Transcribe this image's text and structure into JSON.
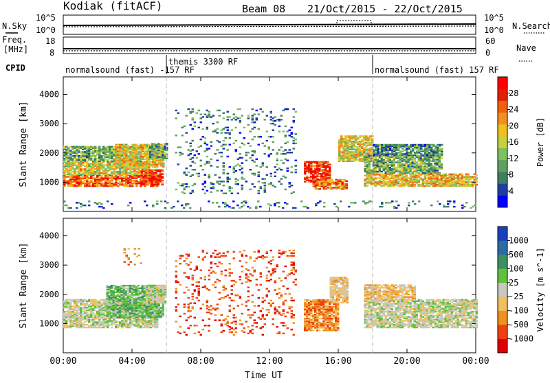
{
  "header": {
    "station": "Kodiak (fitACF)",
    "beam": "Beam 08",
    "dates": "21/Oct/2015 - 22/Oct/2015"
  },
  "side_labels": {
    "nsky": "N.Sky",
    "freq": "Freq.",
    "freq_unit": "[MHz]",
    "cpid": "CPID",
    "nsearch": "N.Search",
    "nave": "Nave"
  },
  "top_ticks": {
    "noise_left_hi": "10^5",
    "noise_left_lo": "10^0",
    "noise_right_hi": "10^5",
    "noise_right_lo": "10^0",
    "freq_hi": "18",
    "freq_lo": "8",
    "nave_hi": "60",
    "nave_lo": "0"
  },
  "cpid_segments": [
    {
      "label": "normalsound (fast) -157 RF",
      "start_hour": 0,
      "end_hour": 6
    },
    {
      "label": "themis 3300 RF",
      "start_hour": 6,
      "end_hour": 18
    },
    {
      "label": "normalsound (fast) 157 RF",
      "start_hour": 18,
      "end_hour": 24
    }
  ],
  "chart_data": [
    {
      "type": "heatmap",
      "panel": "power",
      "ylabel": "Slant Range [km]",
      "xlabel": "Time UT",
      "x_ticks": [
        "00:00",
        "04:00",
        "08:00",
        "12:00",
        "16:00",
        "20:00",
        "00:00"
      ],
      "x_tick_hours": [
        0,
        4,
        8,
        12,
        16,
        20,
        24
      ],
      "xlim_hours": [
        0,
        24
      ],
      "ylim": [
        0,
        4600
      ],
      "y_ticks": [
        1000,
        2000,
        3000,
        4000
      ],
      "colorbar": {
        "label": "Power [dB]",
        "ticks": [
          "4",
          "8",
          "12",
          "16",
          "20",
          "24",
          "28"
        ],
        "colors": [
          "#0000ff",
          "#1f3fa0",
          "#3d8060",
          "#5fa060",
          "#7cc060",
          "#c8d040",
          "#f0c020",
          "#f09020",
          "#f06010",
          "#e02000",
          "#ff0000"
        ]
      },
      "blobs": [
        {
          "t0": 0.0,
          "t1": 5.5,
          "r0": 850,
          "r1": 1250,
          "level": 0.8
        },
        {
          "t0": 0.0,
          "t1": 5.0,
          "r0": 1250,
          "r1": 1700,
          "level": 0.55
        },
        {
          "t0": 0.0,
          "t1": 4.5,
          "r0": 1700,
          "r1": 2200,
          "level": 0.35
        },
        {
          "t0": 3.0,
          "t1": 5.8,
          "r0": 1500,
          "r1": 2300,
          "level": 0.55
        },
        {
          "t0": 4.5,
          "t1": 5.8,
          "r0": 900,
          "r1": 1400,
          "level": 0.9
        },
        {
          "t0": 5.0,
          "t1": 6.0,
          "r0": 1800,
          "r1": 2300,
          "level": 0.3
        },
        {
          "t0": 14.0,
          "t1": 15.5,
          "r0": 1000,
          "r1": 1700,
          "level": 0.9
        },
        {
          "t0": 14.5,
          "t1": 16.5,
          "r0": 750,
          "r1": 1100,
          "level": 0.75
        },
        {
          "t0": 16.0,
          "t1": 18.0,
          "r0": 1700,
          "r1": 2600,
          "level": 0.55
        },
        {
          "t0": 17.5,
          "t1": 24.0,
          "r0": 850,
          "r1": 1300,
          "level": 0.6
        },
        {
          "t0": 17.5,
          "t1": 22.0,
          "r0": 1300,
          "r1": 1900,
          "level": 0.35
        },
        {
          "t0": 18.0,
          "t1": 22.0,
          "r0": 1900,
          "r1": 2300,
          "level": 0.25
        },
        {
          "t0": 6.5,
          "t1": 13.5,
          "r0": 600,
          "r1": 3500,
          "level": 0.2,
          "sparse": true
        },
        {
          "t0": 0.0,
          "t1": 24.0,
          "r0": 100,
          "r1": 350,
          "level": 0.2,
          "sparse": true
        }
      ]
    },
    {
      "type": "heatmap",
      "panel": "velocity",
      "ylabel": "Slant Range [km]",
      "xlabel": "Time UT",
      "x_ticks": [
        "00:00",
        "04:00",
        "08:00",
        "12:00",
        "16:00",
        "20:00",
        "00:00"
      ],
      "x_tick_hours": [
        0,
        4,
        8,
        12,
        16,
        20,
        24
      ],
      "xlim_hours": [
        0,
        24
      ],
      "ylim": [
        0,
        4600
      ],
      "y_ticks": [
        1000,
        2000,
        3000,
        4000
      ],
      "colorbar": {
        "label": "Velocity [m s^-1]",
        "ticks": [
          "1000",
          "500",
          "100",
          "25",
          "-25",
          "-100",
          "-500",
          "-1000"
        ],
        "colors": [
          "#1c3fbf",
          "#2c6ca0",
          "#3b8f60",
          "#60c040",
          "#c8c8c0",
          "#f0c060",
          "#f09020",
          "#f04010",
          "#e00000"
        ]
      },
      "blobs": [
        {
          "t0": 0.0,
          "t1": 5.5,
          "r0": 850,
          "r1": 1800,
          "level": 4
        },
        {
          "t0": 2.5,
          "t1": 5.8,
          "r0": 1200,
          "r1": 2300,
          "level": 3
        },
        {
          "t0": 4.8,
          "t1": 6.0,
          "r0": 1700,
          "r1": 2300,
          "level": 4
        },
        {
          "t0": 14.0,
          "t1": 16.0,
          "r0": 750,
          "r1": 1800,
          "level": 6
        },
        {
          "t0": 15.5,
          "t1": 16.5,
          "r0": 1700,
          "r1": 2600,
          "level": 5
        },
        {
          "t0": 17.5,
          "t1": 24.0,
          "r0": 850,
          "r1": 1800,
          "level": 4
        },
        {
          "t0": 17.5,
          "t1": 20.5,
          "r0": 1800,
          "r1": 2300,
          "level": 5
        },
        {
          "t0": 6.5,
          "t1": 13.5,
          "r0": 600,
          "r1": 3500,
          "level": 7,
          "sparse": true
        },
        {
          "t0": 3.5,
          "t1": 4.5,
          "r0": 3000,
          "r1": 3600,
          "level": 6,
          "sparse": true
        }
      ]
    }
  ]
}
